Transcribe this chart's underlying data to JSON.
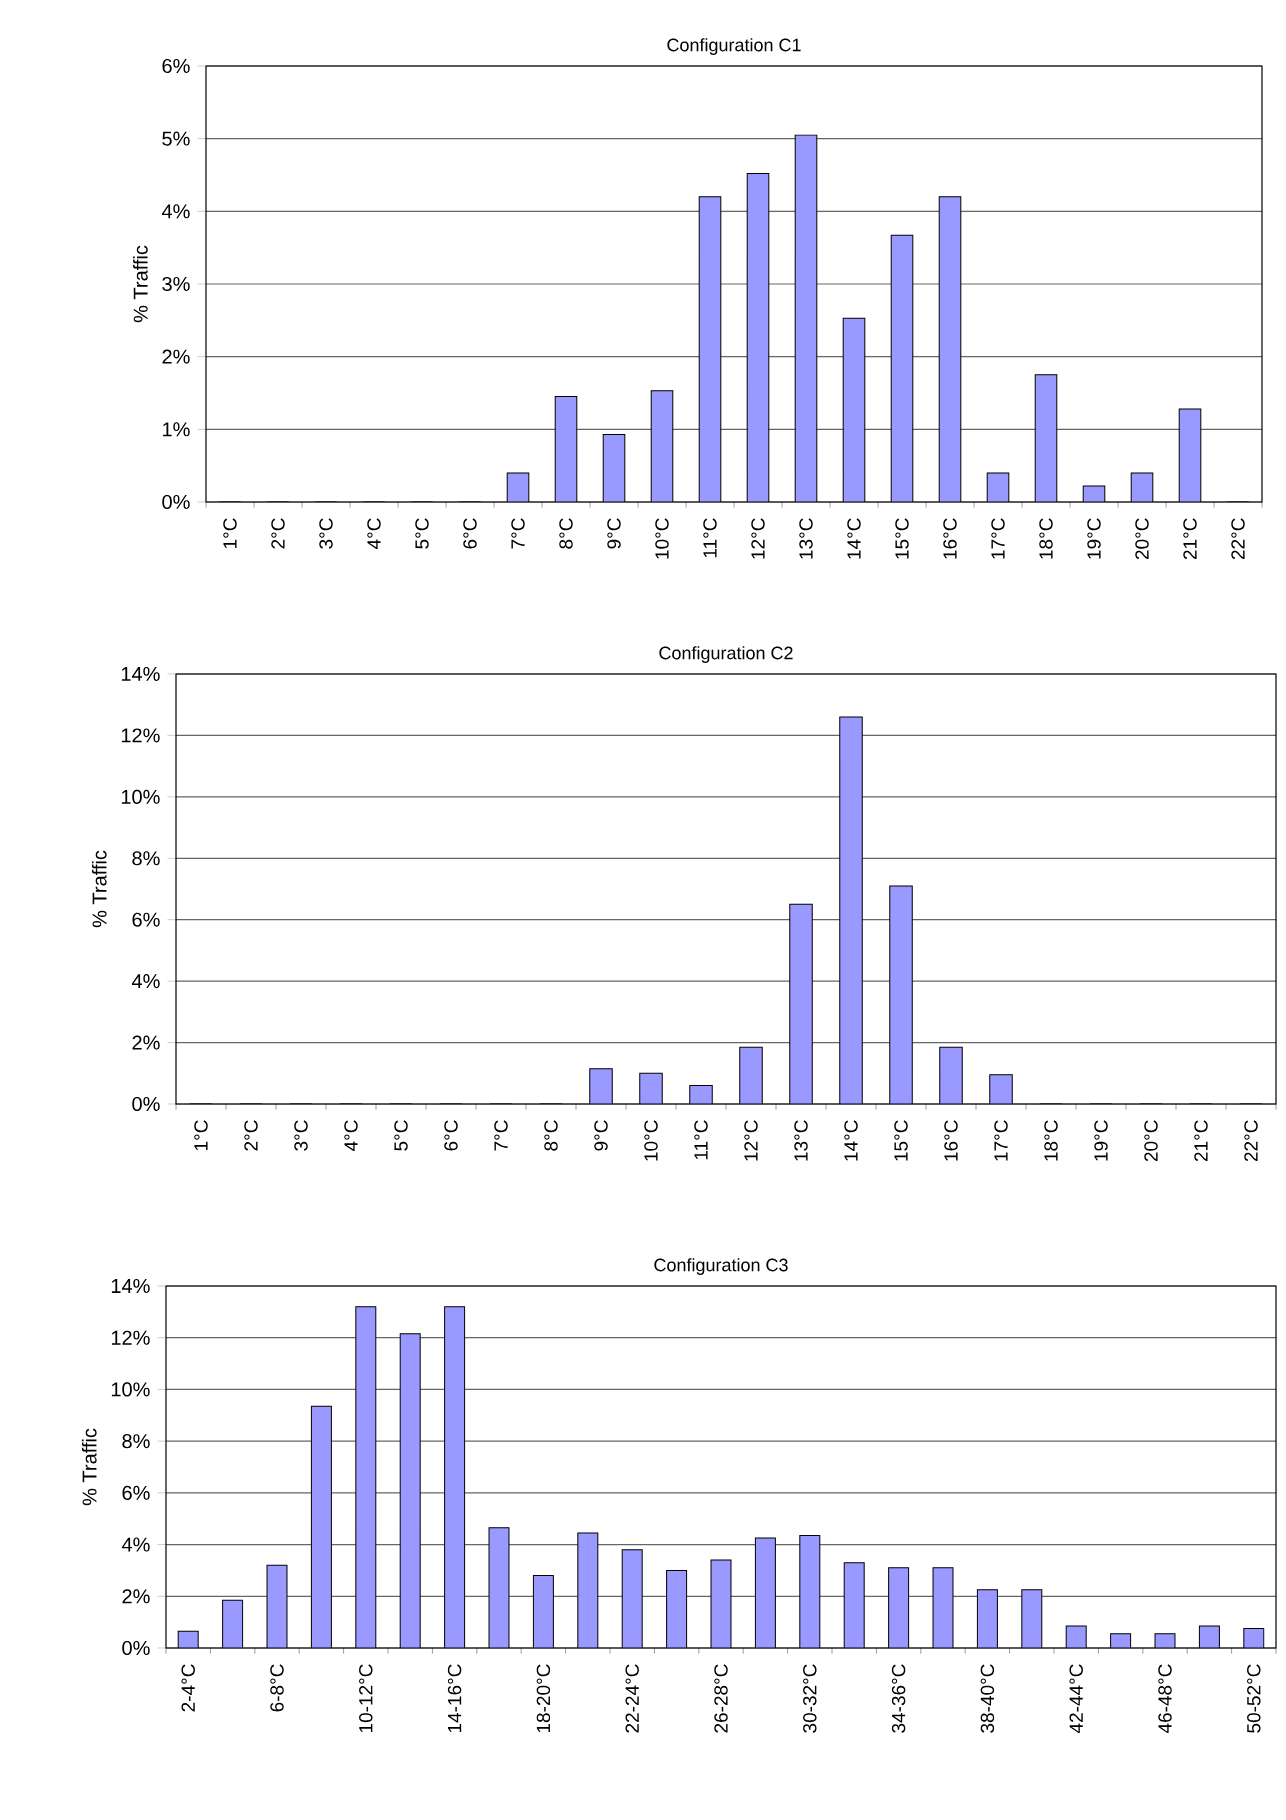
{
  "chart_data": [
    {
      "type": "bar",
      "title": "Configuration C1",
      "ylabel": "% Traffic",
      "color": "#9999ff",
      "grid": "y",
      "categories": [
        "1°C",
        "2°C",
        "3°C",
        "4°C",
        "5°C",
        "6°C",
        "7°C",
        "8°C",
        "9°C",
        "10°C",
        "11°C",
        "12°C",
        "13°C",
        "14°C",
        "15°C",
        "16°C",
        "17°C",
        "18°C",
        "19°C",
        "20°C",
        "21°C",
        "22°C"
      ],
      "values": [
        0,
        0,
        0,
        0,
        0,
        0,
        0.4,
        1.45,
        0.93,
        1.53,
        4.2,
        4.52,
        5.05,
        2.53,
        3.67,
        4.2,
        0.4,
        1.75,
        0.22,
        0.4,
        1.28,
        0
      ],
      "ylim": [
        0,
        6
      ],
      "yticks": [
        {
          "value": 0,
          "label": "0%"
        },
        {
          "value": 1,
          "label": "1%"
        },
        {
          "value": 2,
          "label": "2%"
        },
        {
          "value": 3,
          "label": "3%"
        },
        {
          "value": 4,
          "label": "4%"
        },
        {
          "value": 5,
          "label": "5%"
        },
        {
          "value": 6,
          "label": "6%"
        }
      ]
    },
    {
      "type": "bar",
      "title": "Configuration C2",
      "ylabel": "% Traffic",
      "color": "#9999ff",
      "grid": "y",
      "categories": [
        "1°C",
        "2°C",
        "3°C",
        "4°C",
        "5°C",
        "6°C",
        "7°C",
        "8°C",
        "9°C",
        "10°C",
        "11°C",
        "12°C",
        "13°C",
        "14°C",
        "15°C",
        "16°C",
        "17°C",
        "18°C",
        "19°C",
        "20°C",
        "21°C",
        "22°C"
      ],
      "values": [
        0,
        0,
        0,
        0,
        0,
        0,
        0,
        0,
        1.15,
        1.0,
        0.6,
        1.85,
        6.5,
        12.6,
        7.1,
        1.85,
        0.95,
        0,
        0,
        0,
        0,
        0
      ],
      "ylim": [
        0,
        14
      ],
      "yticks": [
        {
          "value": 0,
          "label": "0%"
        },
        {
          "value": 2,
          "label": "2%"
        },
        {
          "value": 4,
          "label": "4%"
        },
        {
          "value": 6,
          "label": "6%"
        },
        {
          "value": 8,
          "label": "8%"
        },
        {
          "value": 10,
          "label": "10%"
        },
        {
          "value": 12,
          "label": "12%"
        },
        {
          "value": 14,
          "label": "14%"
        }
      ]
    },
    {
      "type": "bar",
      "title": "Configuration C3",
      "ylabel": "% Traffic",
      "color": "#9999ff",
      "grid": "y",
      "categories": [
        "2-4°C",
        null,
        "6-8°C",
        null,
        "10-12°C",
        null,
        "14-16°C",
        null,
        "18-20°C",
        null,
        "22-24°C",
        null,
        "26-28°C",
        null,
        "30-32°C",
        null,
        "34-36°C",
        null,
        "38-40°C",
        null,
        "42-44°C",
        null,
        "46-48°C",
        null,
        "50-52°C"
      ],
      "values": [
        0.65,
        1.85,
        3.2,
        9.35,
        13.2,
        12.15,
        13.2,
        4.65,
        2.8,
        4.45,
        3.8,
        3.0,
        3.4,
        4.25,
        4.35,
        3.3,
        3.1,
        3.1,
        2.25,
        2.25,
        0.85,
        0.55,
        0.55,
        0.85,
        0.75
      ],
      "ylim": [
        0,
        14
      ],
      "yticks": [
        {
          "value": 0,
          "label": "0%"
        },
        {
          "value": 2,
          "label": "2%"
        },
        {
          "value": 4,
          "label": "4%"
        },
        {
          "value": 6,
          "label": "6%"
        },
        {
          "value": 8,
          "label": "8%"
        },
        {
          "value": 10,
          "label": "10%"
        },
        {
          "value": 12,
          "label": "12%"
        },
        {
          "value": 14,
          "label": "14%"
        }
      ]
    }
  ]
}
